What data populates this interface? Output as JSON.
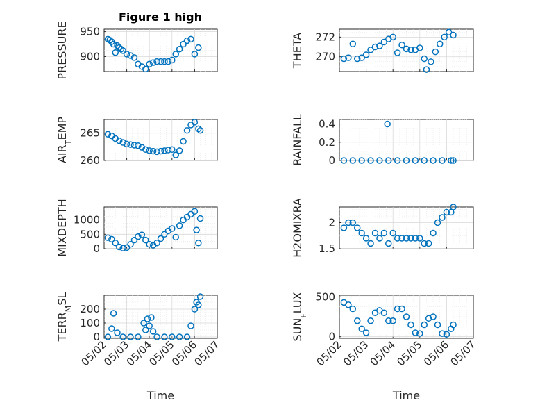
{
  "figure": {
    "title": "Figure 1 high",
    "colors": {
      "marker": "#0072BD",
      "axis": "#262626",
      "grid": "#d9d9d9"
    }
  },
  "x_axis": {
    "label": "Time",
    "ticks": [
      "05/02",
      "05/03",
      "05/04",
      "05/05",
      "05/06",
      "05/07"
    ]
  },
  "chart_data": [
    {
      "type": "scatter",
      "ylabel": "PRESSURE",
      "ylim": [
        870,
        955
      ],
      "yticks": [
        900,
        950
      ],
      "grid": true,
      "x": [
        "05/02 04:00",
        "05/02 06:00",
        "05/02 08:00",
        "05/02 10:00",
        "05/02 12:00",
        "05/02 14:00",
        "05/02 16:00",
        "05/02 18:00",
        "05/02 20:00",
        "05/03 00:00",
        "05/03 04:00",
        "05/03 08:00",
        "05/03 12:00",
        "05/03 16:00",
        "05/03 20:00",
        "05/04 00:00",
        "05/04 04:00",
        "05/04 08:00",
        "05/04 12:00",
        "05/04 16:00",
        "05/04 20:00",
        "05/05 00:00",
        "05/05 04:00",
        "05/05 08:00",
        "05/05 12:00",
        "05/05 16:00",
        "05/05 20:00",
        "05/06 00:00",
        "05/06 04:00"
      ],
      "y": [
        935,
        933,
        930,
        925,
        908,
        922,
        918,
        915,
        912,
        905,
        902,
        898,
        885,
        880,
        875,
        885,
        888,
        890,
        890,
        890,
        890,
        893,
        905,
        915,
        925,
        932,
        935,
        905,
        918
      ]
    },
    {
      "type": "scatter",
      "ylabel": "THETA",
      "ylim": [
        268.5,
        272.8
      ],
      "yticks": [
        270,
        272
      ],
      "grid": true,
      "x": [
        "05/02 04:00",
        "05/02 08:00",
        "05/02 12:00",
        "05/02 16:00",
        "05/02 20:00",
        "05/03 00:00",
        "05/03 04:00",
        "05/03 08:00",
        "05/03 12:00",
        "05/03 16:00",
        "05/03 20:00",
        "05/04 00:00",
        "05/04 04:00",
        "05/04 08:00",
        "05/04 12:00",
        "05/04 16:00",
        "05/04 20:00",
        "05/05 00:00",
        "05/05 04:00",
        "05/05 06:00",
        "05/05 10:00",
        "05/05 14:00",
        "05/05 18:00",
        "05/05 22:00",
        "05/06 02:00",
        "05/06 06:00"
      ],
      "y": [
        269.8,
        269.9,
        271.3,
        269.8,
        269.9,
        270.2,
        270.7,
        271.0,
        271.1,
        271.5,
        271.8,
        272.0,
        270.4,
        271.2,
        270.8,
        270.7,
        270.7,
        270.9,
        269.8,
        268.7,
        269.5,
        270.5,
        271.3,
        272.0,
        272.5,
        272.2
      ]
    },
    {
      "type": "scatter",
      "ylabel": "AIR_TEMP",
      "ylim": [
        260,
        267.5
      ],
      "yticks": [
        260,
        265
      ],
      "grid": true,
      "x": [
        "05/02 04:00",
        "05/02 08:00",
        "05/02 12:00",
        "05/02 16:00",
        "05/02 20:00",
        "05/03 00:00",
        "05/03 04:00",
        "05/03 08:00",
        "05/03 12:00",
        "05/03 16:00",
        "05/03 20:00",
        "05/04 00:00",
        "05/04 04:00",
        "05/04 08:00",
        "05/04 12:00",
        "05/04 16:00",
        "05/04 20:00",
        "05/05 00:00",
        "05/05 04:00",
        "05/05 08:00",
        "05/05 12:00",
        "05/05 16:00",
        "05/05 20:00",
        "05/06 00:00",
        "05/06 04:00",
        "05/06 06:00"
      ],
      "y": [
        264.8,
        264.5,
        264.0,
        263.6,
        263.3,
        263.0,
        262.9,
        262.8,
        262.7,
        262.4,
        262.0,
        261.8,
        261.7,
        261.6,
        261.7,
        261.8,
        261.9,
        262.0,
        261.0,
        261.8,
        263.5,
        265.5,
        266.5,
        267.0,
        265.8,
        265.5
      ]
    },
    {
      "type": "scatter",
      "ylabel": "RAINFALL",
      "ylim": [
        0,
        0.45
      ],
      "yticks": [
        0,
        0.2,
        0.4
      ],
      "grid": true,
      "x": [
        "05/02 04:00",
        "05/02 12:00",
        "05/02 20:00",
        "05/03 04:00",
        "05/03 12:00",
        "05/03 20:00",
        "05/04 04:00",
        "05/04 12:00",
        "05/04 20:00",
        "05/05 04:00",
        "05/05 12:00",
        "05/05 20:00",
        "05/06 04:00",
        "05/06 06:00",
        "05/03 19:00"
      ],
      "y": [
        0,
        0,
        0,
        0,
        0,
        0,
        0,
        0,
        0,
        0,
        0,
        0,
        0,
        0,
        0.4
      ]
    },
    {
      "type": "scatter",
      "ylabel": "MIXDEPTH",
      "ylim": [
        0,
        1450
      ],
      "yticks": [
        0,
        500,
        1000
      ],
      "grid": true,
      "x": [
        "05/02 04:00",
        "05/02 08:00",
        "05/02 12:00",
        "05/02 16:00",
        "05/02 20:00",
        "05/03 00:00",
        "05/03 04:00",
        "05/03 08:00",
        "05/03 12:00",
        "05/03 16:00",
        "05/03 20:00",
        "05/04 00:00",
        "05/04 04:00",
        "05/04 08:00",
        "05/04 12:00",
        "05/04 16:00",
        "05/04 20:00",
        "05/05 00:00",
        "05/05 04:00",
        "05/05 08:00",
        "05/05 12:00",
        "05/05 16:00",
        "05/05 20:00",
        "05/06 00:00",
        "05/06 02:00",
        "05/06 04:00",
        "05/06 06:00"
      ],
      "y": [
        380,
        330,
        200,
        60,
        20,
        40,
        150,
        300,
        420,
        480,
        300,
        150,
        120,
        200,
        350,
        500,
        620,
        700,
        400,
        800,
        1000,
        1100,
        1200,
        1300,
        650,
        200,
        1050
      ]
    },
    {
      "type": "scatter",
      "ylabel": "H2OMIXRA",
      "ylim": [
        1.5,
        2.3
      ],
      "yticks": [
        1.5,
        2
      ],
      "grid": true,
      "x": [
        "05/02 04:00",
        "05/02 08:00",
        "05/02 12:00",
        "05/02 16:00",
        "05/02 20:00",
        "05/03 00:00",
        "05/03 04:00",
        "05/03 08:00",
        "05/03 12:00",
        "05/03 16:00",
        "05/03 20:00",
        "05/04 00:00",
        "05/04 04:00",
        "05/04 08:00",
        "05/04 12:00",
        "05/04 16:00",
        "05/04 20:00",
        "05/05 00:00",
        "05/05 04:00",
        "05/05 08:00",
        "05/05 12:00",
        "05/05 16:00",
        "05/05 20:00",
        "05/06 00:00",
        "05/06 04:00",
        "05/06 06:00"
      ],
      "y": [
        1.9,
        2.0,
        2.0,
        1.9,
        1.8,
        1.7,
        1.6,
        1.8,
        1.7,
        1.8,
        1.6,
        1.8,
        1.7,
        1.7,
        1.7,
        1.7,
        1.7,
        1.7,
        1.6,
        1.6,
        1.8,
        2.0,
        2.1,
        2.2,
        2.2,
        2.3
      ]
    },
    {
      "type": "scatter",
      "ylabel": "TERR_MSL",
      "ylim": [
        -10,
        300
      ],
      "yticks": [
        0,
        100,
        200
      ],
      "grid": true,
      "x": [
        "05/02 04:00",
        "05/02 08:00",
        "05/02 10:00",
        "05/02 14:00",
        "05/02 20:00",
        "05/03 04:00",
        "05/03 12:00",
        "05/03 18:00",
        "05/03 20:00",
        "05/03 22:00",
        "05/04 00:00",
        "05/04 02:00",
        "05/04 04:00",
        "05/04 08:00",
        "05/04 16:00",
        "05/05 00:00",
        "05/05 08:00",
        "05/05 16:00",
        "05/05 20:00",
        "05/06 00:00",
        "05/06 02:00",
        "05/06 04:00",
        "05/06 06:00"
      ],
      "y": [
        0,
        60,
        170,
        30,
        0,
        0,
        0,
        100,
        50,
        130,
        80,
        140,
        40,
        0,
        0,
        0,
        0,
        0,
        80,
        200,
        250,
        230,
        290
      ]
    },
    {
      "type": "scatter",
      "ylabel": "SUN_FLUX",
      "ylim": [
        -20,
        520
      ],
      "yticks": [
        0,
        500
      ],
      "grid": true,
      "x": [
        "05/02 04:00",
        "05/02 08:00",
        "05/02 12:00",
        "05/02 16:00",
        "05/02 20:00",
        "05/03 00:00",
        "05/03 04:00",
        "05/03 08:00",
        "05/03 12:00",
        "05/03 16:00",
        "05/03 20:00",
        "05/04 00:00",
        "05/04 04:00",
        "05/04 08:00",
        "05/04 12:00",
        "05/04 16:00",
        "05/04 20:00",
        "05/05 00:00",
        "05/05 04:00",
        "05/05 08:00",
        "05/05 12:00",
        "05/05 16:00",
        "05/05 20:00",
        "05/06 00:00",
        "05/06 04:00",
        "05/06 06:00"
      ],
      "y": [
        430,
        400,
        350,
        200,
        100,
        50,
        200,
        300,
        330,
        300,
        200,
        200,
        350,
        350,
        250,
        150,
        50,
        40,
        150,
        230,
        250,
        150,
        40,
        30,
        100,
        150
      ]
    }
  ]
}
